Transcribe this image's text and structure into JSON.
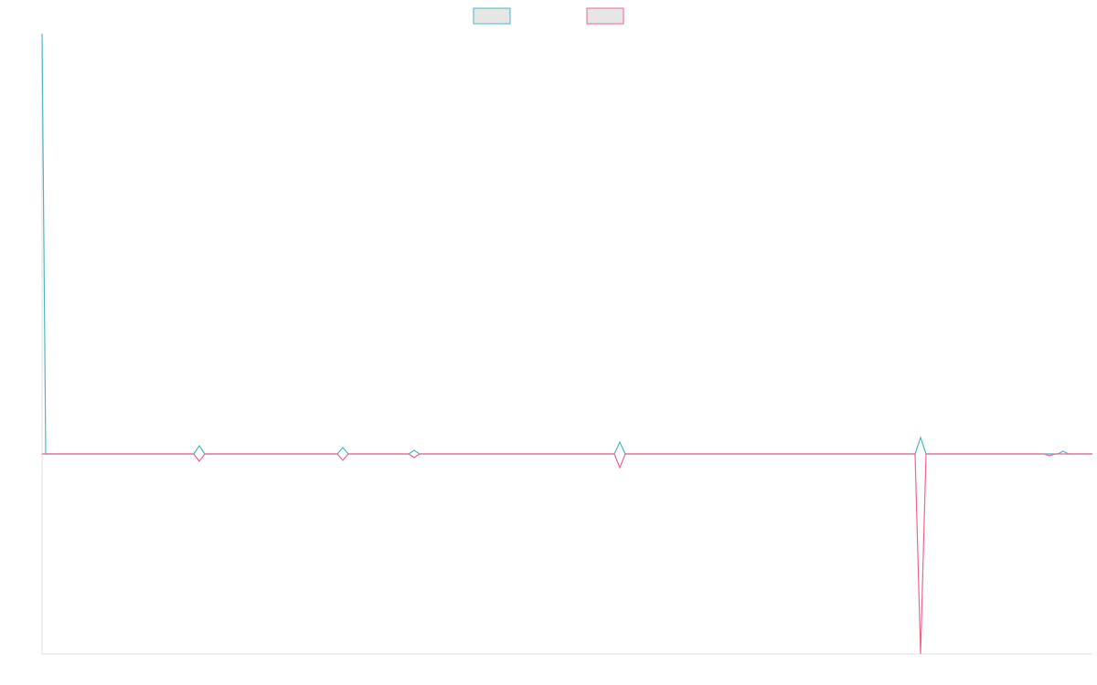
{
  "chart_data": {
    "type": "line",
    "x": [
      0,
      4,
      166,
      172,
      178,
      323,
      329,
      335,
      364,
      401,
      407,
      413,
      552,
      626,
      632,
      638,
      704,
      955,
      961,
      967,
      1096,
      1102,
      1108,
      1111,
      1117,
      1123,
      1149
    ],
    "series": [
      {
        "color": "#4bb8c0",
        "values": [
          460,
          0,
          0,
          9,
          0,
          0,
          7,
          0,
          0,
          0,
          4,
          0,
          0,
          0,
          13,
          0,
          0,
          0,
          18,
          0,
          0,
          0,
          0,
          0,
          3,
          0,
          0
        ]
      },
      {
        "color": "#f0648a",
        "values": [
          0,
          0,
          0,
          -8,
          0,
          0,
          -7,
          0,
          0,
          0,
          -4,
          0,
          0,
          0,
          -15,
          0,
          0,
          0,
          -219,
          0,
          0,
          -2,
          0,
          0,
          0,
          0,
          0
        ]
      }
    ],
    "xlim": [
      0,
      1149
    ],
    "ylim": [
      -219,
      460
    ],
    "legend": "top"
  }
}
